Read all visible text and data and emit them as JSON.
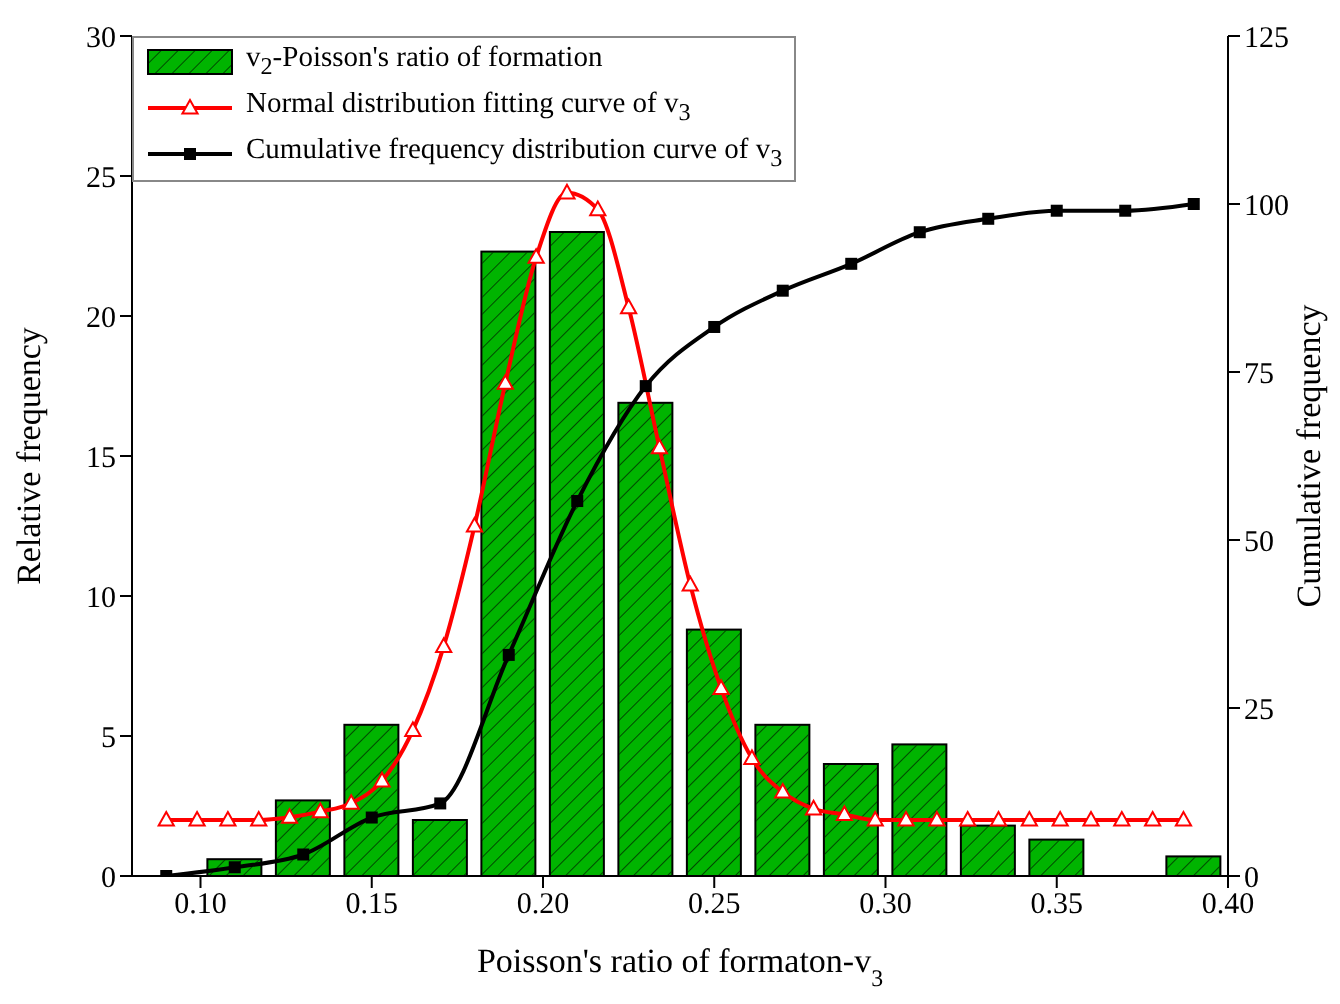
{
  "chart_data": {
    "type": "bar",
    "xlabel": "Poisson's ratio of formaton-v$_{3}$",
    "ylabel": "Relative frequency",
    "y2label": "Cumulative frequency",
    "xlim": [
      0.08,
      0.4
    ],
    "xticks": [
      {
        "value": 0.1,
        "label": "0.10"
      },
      {
        "value": 0.15,
        "label": "0.15"
      },
      {
        "value": 0.2,
        "label": "0.20"
      },
      {
        "value": 0.25,
        "label": "0.25"
      },
      {
        "value": 0.3,
        "label": "0.30"
      },
      {
        "value": 0.35,
        "label": "0.35"
      },
      {
        "value": 0.4,
        "label": "0.40"
      }
    ],
    "ylim": [
      0,
      30
    ],
    "yticks": [
      0,
      5,
      10,
      15,
      20,
      25,
      30
    ],
    "y2lim": [
      0,
      125
    ],
    "y2ticks": [
      0,
      25,
      50,
      75,
      100,
      125
    ],
    "legend": "top left",
    "grid": false,
    "series": [
      {
        "name": "v$_{2}$-Poisson's ratio of formation",
        "color": "#00b400",
        "x": [
          0.11,
          0.13,
          0.15,
          0.17,
          0.19,
          0.21,
          0.23,
          0.25,
          0.27,
          0.29,
          0.31,
          0.33,
          0.35,
          0.37,
          0.39
        ],
        "values": [
          0.6,
          2.7,
          5.4,
          2.0,
          22.3,
          23.0,
          16.9,
          8.8,
          5.4,
          4.0,
          4.7,
          1.8,
          1.3,
          0,
          0.7
        ]
      },
      {
        "type": "line",
        "name": "Normal distribution fitting curve of v$_{3}$",
        "color": "#ff0000",
        "marker": "triangle",
        "x": [
          0.09,
          0.099,
          0.108,
          0.117,
          0.126,
          0.135,
          0.144,
          0.153,
          0.162,
          0.171,
          0.18,
          0.189,
          0.198,
          0.207,
          0.216,
          0.225,
          0.234,
          0.243,
          0.252,
          0.261,
          0.27,
          0.279,
          0.288,
          0.297,
          0.306,
          0.315,
          0.324,
          0.333,
          0.342,
          0.351,
          0.36,
          0.369,
          0.378,
          0.387
        ],
        "values": [
          2.0,
          2.0,
          2.0,
          2.0,
          2.1,
          2.3,
          2.6,
          3.4,
          5.2,
          8.2,
          12.5,
          17.6,
          22.1,
          24.4,
          23.8,
          20.3,
          15.3,
          10.4,
          6.7,
          4.2,
          3.0,
          2.4,
          2.2,
          2.0,
          2.0,
          2.0,
          2.0,
          2.0,
          2.0,
          2.0,
          2.0,
          2.0,
          2.0,
          2.0
        ]
      },
      {
        "type": "line",
        "name": "Cumulative frequency distribution curve of v$_{3}$",
        "color": "#000000",
        "marker": "square",
        "axis": "y2",
        "x": [
          0.09,
          0.11,
          0.13,
          0.15,
          0.17,
          0.19,
          0.21,
          0.23,
          0.25,
          0.27,
          0.29,
          0.31,
          0.33,
          0.35,
          0.37,
          0.39
        ],
        "values": [
          0,
          1.3,
          3.2,
          8.7,
          10.8,
          32.9,
          55.8,
          72.9,
          81.7,
          87.1,
          91.1,
          95.8,
          97.8,
          99.0,
          99.0,
          100
        ]
      }
    ]
  }
}
